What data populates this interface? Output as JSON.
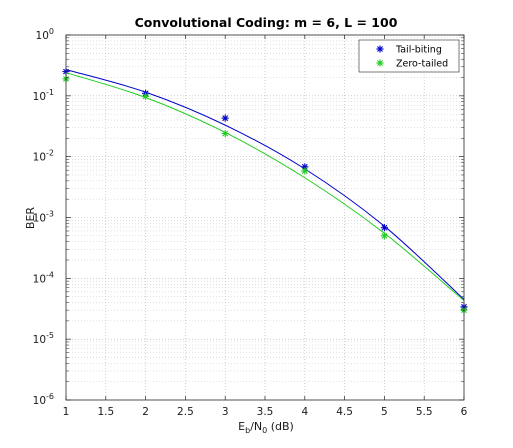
{
  "chart_data": {
    "type": "line",
    "title": "Convolutional Coding: m = 6, L = 100",
    "xlabel": {
      "main": "E",
      "sub1": "b",
      "mid": "/N",
      "sub2": "0",
      "tail": " (dB)"
    },
    "ylabel": "BER",
    "xlim": [
      1,
      6
    ],
    "ylim": [
      1e-06,
      1
    ],
    "yscale": "log",
    "grid": "on (major and minor, dotted)",
    "legend_position": "top-right",
    "x_ticks": [
      "1",
      "1.5",
      "2",
      "2.5",
      "3",
      "3.5",
      "4",
      "4.5",
      "5",
      "5.5",
      "6"
    ],
    "y_ticks": [
      {
        "base": "10",
        "exp": "0"
      },
      {
        "base": "10",
        "exp": "-1"
      },
      {
        "base": "10",
        "exp": "-2"
      },
      {
        "base": "10",
        "exp": "-3"
      },
      {
        "base": "10",
        "exp": "-4"
      },
      {
        "base": "10",
        "exp": "-5"
      },
      {
        "base": "10",
        "exp": "-6"
      }
    ],
    "series": [
      {
        "name": "Tail-biting",
        "color": "#0000cc",
        "marker": "asterisk",
        "points": {
          "x": [
            1,
            2,
            3,
            4,
            5,
            6
          ],
          "y": [
            0.25,
            0.11,
            0.043,
            0.0068,
            0.00068,
            3.4e-05
          ]
        },
        "fit": {
          "x": [
            1,
            2,
            3,
            4,
            5,
            6
          ],
          "y": [
            0.27,
            0.115,
            0.033,
            0.0063,
            0.00072,
            4.5e-05
          ]
        }
      },
      {
        "name": "Zero-tailed",
        "color": "#22cc22",
        "marker": "asterisk",
        "points": {
          "x": [
            1,
            2,
            3,
            4,
            5,
            6
          ],
          "y": [
            0.19,
            0.098,
            0.024,
            0.0058,
            0.0005,
            3e-05
          ]
        },
        "fit": {
          "x": [
            1,
            2,
            3,
            4,
            5,
            6
          ],
          "y": [
            0.24,
            0.094,
            0.025,
            0.0045,
            0.00055,
            4.3e-05
          ]
        }
      }
    ]
  }
}
